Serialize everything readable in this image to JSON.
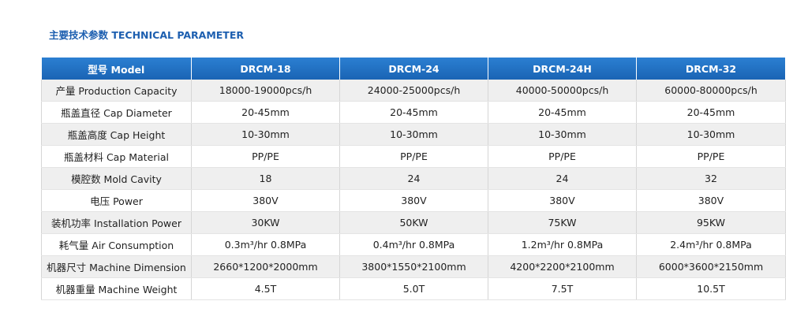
{
  "header": {
    "title": "主要技术参数 TECHNICAL PARAMETER"
  },
  "table": {
    "columns": [
      "型号 Model",
      "DRCM-18",
      "DRCM-24",
      "DRCM-24H",
      "DRCM-32"
    ],
    "rows": [
      [
        "产量 Production Capacity",
        "18000-19000pcs/h",
        "24000-25000pcs/h",
        "40000-50000pcs/h",
        "60000-80000pcs/h"
      ],
      [
        "瓶盖直径 Cap Diameter",
        "20-45mm",
        "20-45mm",
        "20-45mm",
        "20-45mm"
      ],
      [
        "瓶盖高度 Cap Height",
        "10-30mm",
        "10-30mm",
        "10-30mm",
        "10-30mm"
      ],
      [
        "瓶盖材料 Cap Material",
        "PP/PE",
        "PP/PE",
        "PP/PE",
        "PP/PE"
      ],
      [
        "模腔数 Mold Cavity",
        "18",
        "24",
        "24",
        "32"
      ],
      [
        "电压 Power",
        "380V",
        "380V",
        "380V",
        "380V"
      ],
      [
        "装机功率 Installation Power",
        "30KW",
        "50KW",
        "75KW",
        "95KW"
      ],
      [
        "耗气量 Air Consumption",
        "0.3m³/hr 0.8MPa",
        "0.4m³/hr 0.8MPa",
        "1.2m³/hr 0.8MPa",
        "2.4m³/hr 0.8MPa"
      ],
      [
        "机器尺寸 Machine Dimension",
        "2660*1200*2000mm",
        "3800*1550*2100mm",
        "4200*2200*2100mm",
        "6000*3600*2150mm"
      ],
      [
        "机器重量 Machine Weight",
        "4.5T",
        "5.0T",
        "7.5T",
        "10.5T"
      ]
    ]
  }
}
